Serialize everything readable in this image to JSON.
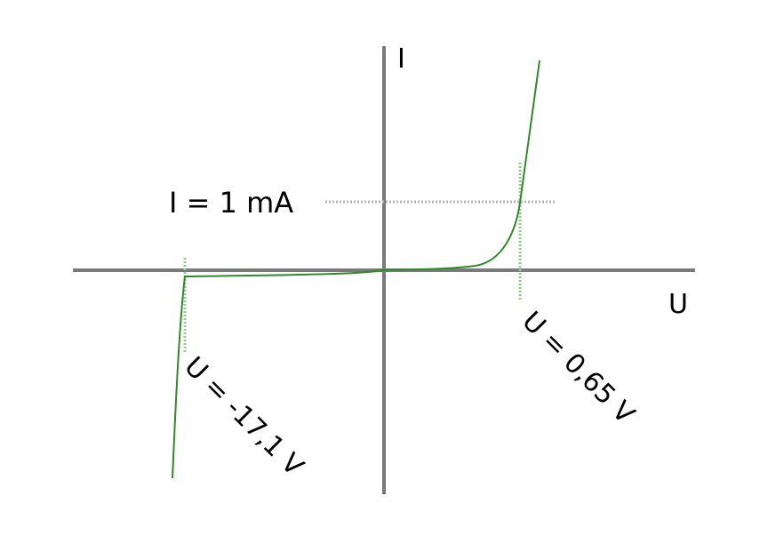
{
  "chart_data": {
    "type": "line",
    "title": "",
    "xlabel": "U",
    "ylabel": "I",
    "grid": false,
    "series": [
      {
        "color": "#2f8a2a",
        "x": [
          -17.1,
          -16.9,
          -10,
          -4,
          0,
          0.3,
          0.55,
          0.65,
          0.72
        ],
        "y": [
          -8,
          -0.09,
          -0.07,
          -0.05,
          0,
          0.03,
          0.4,
          1,
          3
        ]
      }
    ],
    "annotations": {
      "current_marker": "I = 1 mA",
      "forward_voltage": "U = 0,65 V",
      "breakdown_voltage": "U = -17,1 V"
    }
  },
  "colors": {
    "axis": "#7a7a7a",
    "curve": "#2f8a2a",
    "guide_horizontal": "#b4b4b4",
    "guide_vertical": "#8fcf8a"
  }
}
